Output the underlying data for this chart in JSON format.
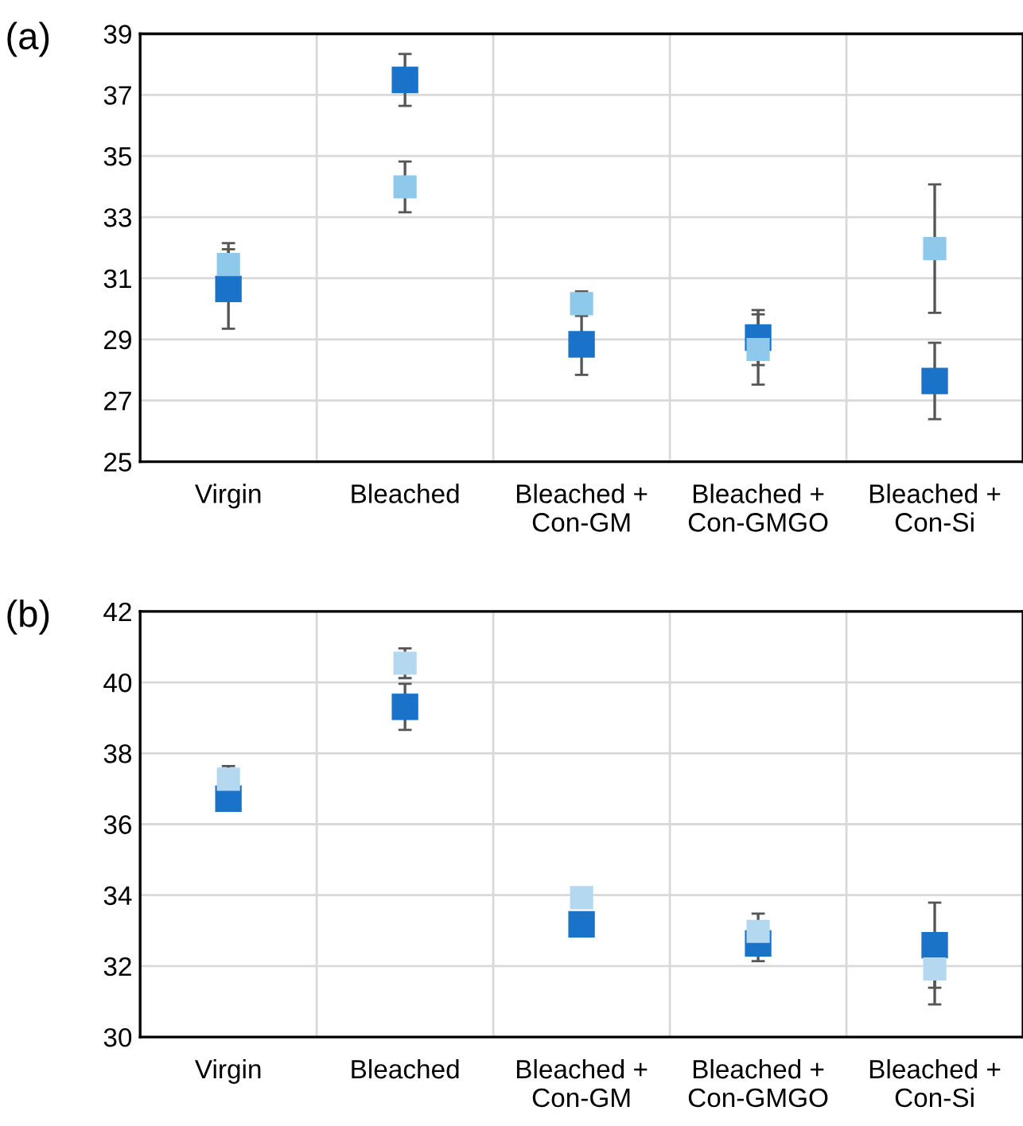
{
  "chart_data": [
    {
      "type": "scatter",
      "annotations": [
        "(a)"
      ],
      "categories": [
        "Virgin",
        "Bleached",
        "Bleached +\nCon-GM",
        "Bleached +\nCon-GMGO",
        "Bleached +\nCon-Si"
      ],
      "series": [
        {
          "color": "#1b73c9",
          "values": [
            30.65,
            37.49,
            28.84,
            29.06,
            27.64
          ],
          "errors": [
            1.3,
            0.85,
            1.0,
            0.9,
            1.25
          ]
        },
        {
          "color": "#8ec8ea",
          "values": [
            31.45,
            33.99,
            30.17,
            28.67,
            31.97
          ],
          "errors": [
            0.7,
            0.83,
            0.4,
            1.15,
            2.1
          ]
        }
      ],
      "ylim": [
        25,
        39
      ],
      "yticks": [
        25,
        27,
        29,
        31,
        33,
        35,
        37,
        39
      ],
      "grid": true,
      "marker": "square"
    },
    {
      "type": "scatter",
      "annotations": [
        "(b)"
      ],
      "categories": [
        "Virgin",
        "Bleached",
        "Bleached +\nCon-GM",
        "Bleached +\nCon-GMGO",
        "Bleached +\nCon-Si"
      ],
      "series": [
        {
          "color": "#1b73c9",
          "values": [
            36.72,
            39.31,
            33.18,
            32.64,
            32.59
          ],
          "errors": [
            null,
            0.65,
            null,
            0.5,
            1.2
          ]
        },
        {
          "color": "#b3d8f0",
          "values": [
            37.27,
            40.54,
            33.93,
            32.98,
            31.92
          ],
          "errors": [
            0.37,
            0.42,
            null,
            0.5,
            1.0
          ]
        }
      ],
      "ylim": [
        30,
        42
      ],
      "yticks": [
        30,
        32,
        34,
        36,
        38,
        40,
        42
      ],
      "grid": true,
      "marker": "square"
    }
  ]
}
